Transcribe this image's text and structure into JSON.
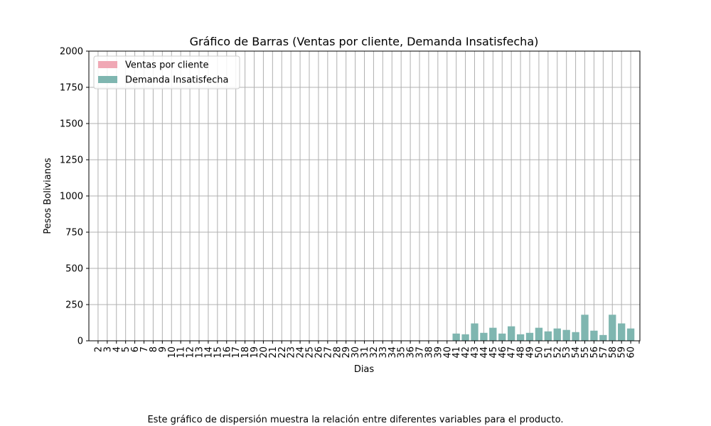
{
  "chart_data": {
    "type": "bar",
    "title": "Gráfico de Barras (Ventas por cliente, Demanda Insatisfecha)",
    "xlabel": "Dias",
    "ylabel": "Pesos Bolivianos",
    "ylim": [
      0,
      2000
    ],
    "yticks": [
      0,
      250,
      500,
      750,
      1000,
      1250,
      1500,
      1750,
      2000
    ],
    "grid": true,
    "legend_position": "top-left",
    "categories": [
      "2",
      "3",
      "4",
      "5",
      "6",
      "7",
      "8",
      "9",
      "10",
      "11",
      "12",
      "13",
      "14",
      "15",
      "16",
      "17",
      "18",
      "19",
      "20",
      "21",
      "22",
      "23",
      "24",
      "25",
      "26",
      "27",
      "28",
      "29",
      "30",
      "31",
      "32",
      "33",
      "34",
      "35",
      "36",
      "37",
      "38",
      "39",
      "40",
      "41",
      "42",
      "43",
      "44",
      "45",
      "46",
      "47",
      "48",
      "49",
      "50",
      "51",
      "52",
      "53",
      "54",
      "55",
      "56",
      "57",
      "58",
      "59",
      "60"
    ],
    "series": [
      {
        "name": "Ventas por cliente",
        "color": "#f0a8b5",
        "values": [
          0,
          0,
          0,
          0,
          0,
          0,
          0,
          0,
          0,
          0,
          0,
          0,
          0,
          0,
          0,
          0,
          0,
          0,
          0,
          0,
          0,
          0,
          0,
          0,
          0,
          0,
          0,
          0,
          0,
          0,
          0,
          0,
          0,
          0,
          0,
          0,
          0,
          0,
          0,
          0,
          0,
          0,
          0,
          0,
          0,
          0,
          0,
          0,
          0,
          0,
          0,
          0,
          0,
          0,
          0,
          0,
          0,
          0,
          0
        ]
      },
      {
        "name": "Demanda Insatisfecha",
        "color": "#7fb6b0",
        "values": [
          0,
          0,
          0,
          0,
          0,
          0,
          0,
          0,
          0,
          0,
          0,
          0,
          0,
          0,
          0,
          0,
          0,
          0,
          0,
          0,
          0,
          0,
          0,
          0,
          0,
          0,
          0,
          0,
          0,
          0,
          0,
          0,
          0,
          0,
          0,
          0,
          0,
          0,
          0,
          50,
          45,
          120,
          55,
          90,
          50,
          100,
          45,
          55,
          90,
          65,
          85,
          75,
          60,
          180,
          70,
          40,
          180,
          120,
          85
        ]
      }
    ]
  },
  "caption": "Este gráfico de dispersión muestra la relación entre diferentes variables para el producto."
}
